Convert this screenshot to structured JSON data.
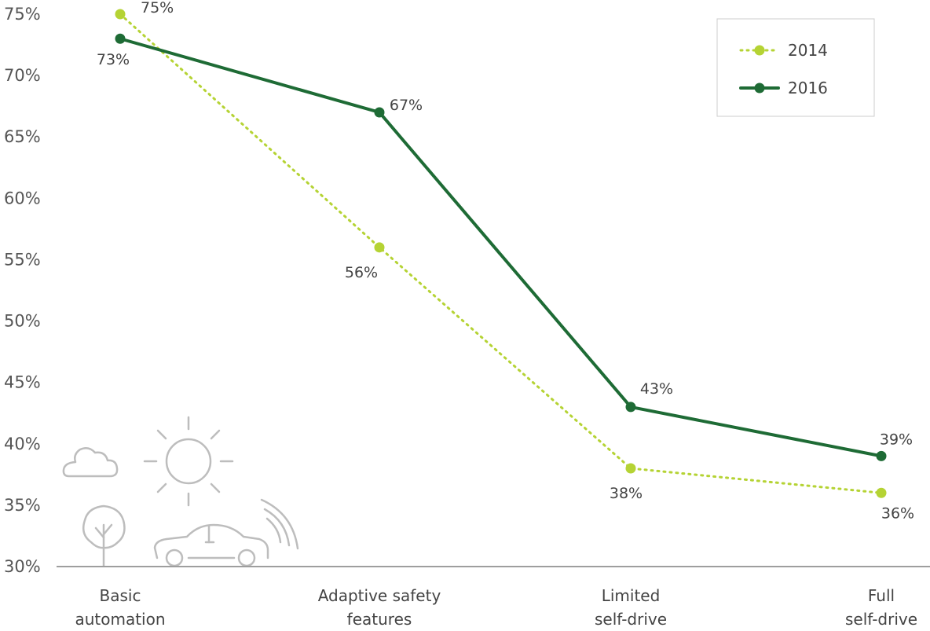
{
  "chart_data": {
    "type": "line",
    "categories": [
      [
        "Basic",
        "automation"
      ],
      [
        "Adaptive safety",
        "features"
      ],
      [
        "Limited",
        "self-drive"
      ],
      [
        "Full",
        "self-drive"
      ]
    ],
    "series": [
      {
        "name": "2014",
        "values": [
          75,
          56,
          38,
          36
        ],
        "labels": [
          "75%",
          "56%",
          "38%",
          "36%"
        ],
        "color": "#b5d334",
        "style": "dotted"
      },
      {
        "name": "2016",
        "values": [
          73,
          67,
          43,
          39
        ],
        "labels": [
          "73%",
          "67%",
          "43%",
          "39%"
        ],
        "color": "#1e6b35",
        "style": "solid"
      }
    ],
    "yticks": [
      "30%",
      "35%",
      "40%",
      "45%",
      "50%",
      "55%",
      "60%",
      "65%",
      "70%",
      "75%"
    ],
    "ytick_values": [
      30,
      35,
      40,
      45,
      50,
      55,
      60,
      65,
      70,
      75
    ],
    "ylim": [
      30,
      75
    ],
    "grid": false,
    "legend_position": "top-right",
    "xlabel": "",
    "ylabel": "",
    "title": ""
  },
  "illustration_icons": [
    "cloud-icon",
    "sun-icon",
    "tree-icon",
    "car-icon",
    "signal-waves-icon"
  ]
}
